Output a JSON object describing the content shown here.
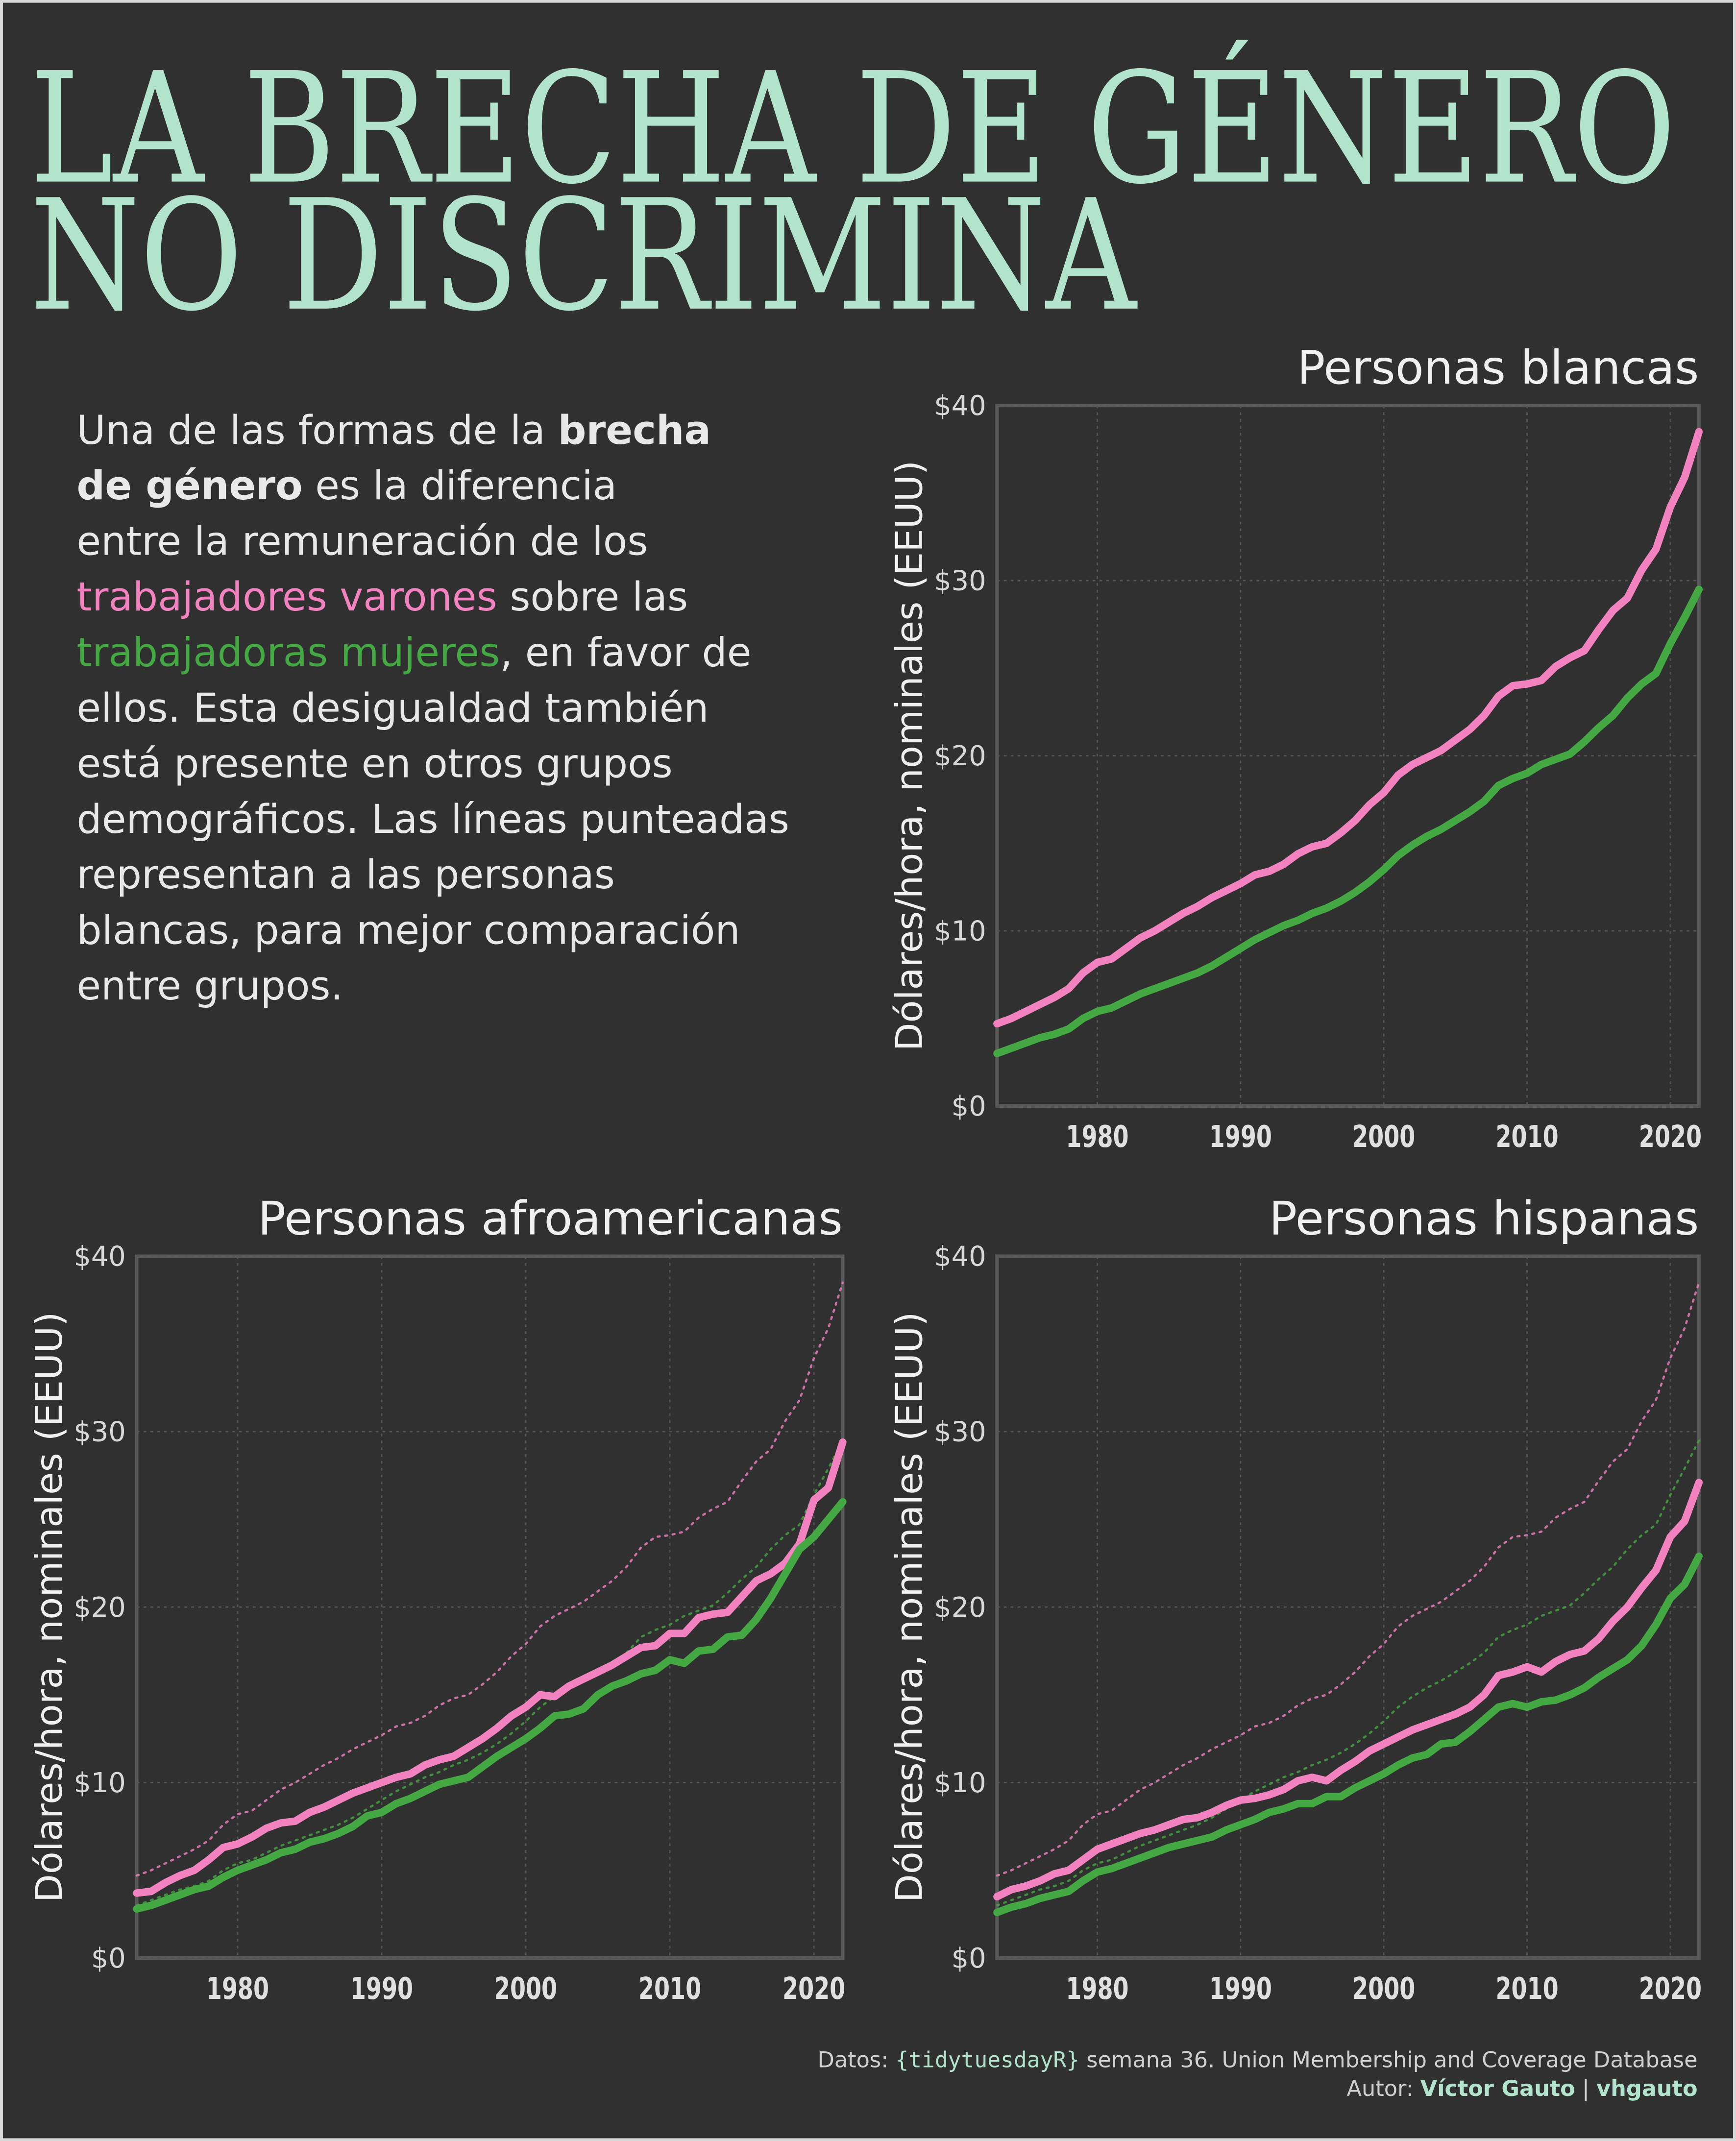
{
  "title": [
    "LA BRECHA DE GÉNERO",
    "NO DISCRIMINA"
  ],
  "description": [
    [
      {
        "text": "Una de las formas de la ",
        "style": "normal"
      },
      {
        "text": "brecha",
        "style": "bold"
      }
    ],
    [
      {
        "text": "de género",
        "style": "bold"
      },
      {
        "text": " es la diferencia",
        "style": "normal"
      }
    ],
    [
      {
        "text": "entre la remuneración de los",
        "style": "normal"
      }
    ],
    [
      {
        "text": "trabajadores varones",
        "style": "men"
      },
      {
        "text": " sobre las",
        "style": "normal"
      }
    ],
    [
      {
        "text": "trabajadoras mujeres",
        "style": "women"
      },
      {
        "text": ", en favor de",
        "style": "normal"
      }
    ],
    [
      {
        "text": "ellos. Esta desigualdad también",
        "style": "normal"
      }
    ],
    [
      {
        "text": "está presente en otros grupos",
        "style": "normal"
      }
    ],
    [
      {
        "text": "demográficos. Las líneas punteadas",
        "style": "normal"
      }
    ],
    [
      {
        "text": "representan a las personas",
        "style": "normal"
      }
    ],
    [
      {
        "text": "blancas, para mejor comparación",
        "style": "normal"
      }
    ],
    [
      {
        "text": "entre grupos.",
        "style": "normal"
      }
    ]
  ],
  "caption": [
    [
      {
        "text": "Datos: ",
        "style": "normal"
      },
      {
        "text": "{tidytuesdayR}",
        "style": "mono"
      },
      {
        "text": " semana 36. Union Membership and Coverage Database",
        "style": "normal"
      }
    ],
    [
      {
        "text": "Autor: ",
        "style": "normal"
      },
      {
        "text": "Víctor Gauto",
        "style": "bold"
      },
      {
        "text": " | ",
        "style": "normal"
      },
      {
        "text": "vhgauto",
        "style": "bold"
      }
    ]
  ],
  "chart_data": [
    {
      "type": "line",
      "title": "Personas blancas",
      "y_label": "Dólares/hora, nominales (EEUU)",
      "x": [
        1973,
        1974,
        1975,
        1976,
        1977,
        1978,
        1979,
        1980,
        1981,
        1982,
        1983,
        1984,
        1985,
        1986,
        1987,
        1988,
        1989,
        1990,
        1991,
        1992,
        1993,
        1994,
        1995,
        1996,
        1997,
        1998,
        1999,
        2000,
        2001,
        2002,
        2003,
        2004,
        2005,
        2006,
        2007,
        2008,
        2009,
        2010,
        2011,
        2012,
        2013,
        2014,
        2015,
        2016,
        2017,
        2018,
        2019,
        2020,
        2021,
        2022
      ],
      "series": [
        {
          "name": "trabajadores varones",
          "color": "#f282c0",
          "values": [
            4.7,
            5.0,
            5.4,
            5.8,
            6.2,
            6.7,
            7.6,
            8.2,
            8.4,
            9.0,
            9.6,
            10.0,
            10.5,
            11.0,
            11.4,
            11.9,
            12.3,
            12.7,
            13.2,
            13.4,
            13.8,
            14.4,
            14.8,
            15.0,
            15.6,
            16.3,
            17.2,
            17.9,
            18.9,
            19.5,
            19.9,
            20.3,
            20.9,
            21.5,
            22.3,
            23.4,
            24.0,
            24.1,
            24.3,
            25.1,
            25.6,
            26.0,
            27.2,
            28.3,
            29.0,
            30.6,
            31.8,
            34.2,
            35.9,
            38.5
          ]
        },
        {
          "name": "trabajadoras mujeres",
          "color": "#44a843",
          "values": [
            3.0,
            3.3,
            3.6,
            3.9,
            4.1,
            4.4,
            5.0,
            5.4,
            5.6,
            6.0,
            6.4,
            6.7,
            7.0,
            7.3,
            7.6,
            8.0,
            8.5,
            9.0,
            9.5,
            9.9,
            10.3,
            10.6,
            11.0,
            11.3,
            11.7,
            12.2,
            12.8,
            13.5,
            14.3,
            14.9,
            15.4,
            15.8,
            16.3,
            16.8,
            17.4,
            18.3,
            18.7,
            19.0,
            19.5,
            19.8,
            20.1,
            20.8,
            21.6,
            22.3,
            23.3,
            24.1,
            24.7,
            26.4,
            27.9,
            29.5
          ]
        }
      ],
      "xlim": [
        1973,
        2022
      ],
      "xticks": [
        1980,
        1990,
        2000,
        2010,
        2020
      ],
      "ylim": [
        0,
        40
      ],
      "yticks": [
        {
          "value": 0,
          "label": "$0"
        },
        {
          "value": 10,
          "label": "$10"
        },
        {
          "value": 20,
          "label": "$20"
        },
        {
          "value": 30,
          "label": "$30"
        },
        {
          "value": 40,
          "label": "$40"
        }
      ],
      "grid": true,
      "reference_dotted": false
    },
    {
      "type": "line",
      "title": "Personas afroamericanas",
      "y_label": "Dólares/hora, nominales (EEUU)",
      "x": [
        1973,
        1974,
        1975,
        1976,
        1977,
        1978,
        1979,
        1980,
        1981,
        1982,
        1983,
        1984,
        1985,
        1986,
        1987,
        1988,
        1989,
        1990,
        1991,
        1992,
        1993,
        1994,
        1995,
        1996,
        1997,
        1998,
        1999,
        2000,
        2001,
        2002,
        2003,
        2004,
        2005,
        2006,
        2007,
        2008,
        2009,
        2010,
        2011,
        2012,
        2013,
        2014,
        2015,
        2016,
        2017,
        2018,
        2019,
        2020,
        2021,
        2022
      ],
      "series": [
        {
          "name": "trabajadores varones",
          "color": "#f282c0",
          "values": [
            3.7,
            3.8,
            4.3,
            4.7,
            5.0,
            5.6,
            6.3,
            6.5,
            6.9,
            7.4,
            7.7,
            7.8,
            8.3,
            8.6,
            9.0,
            9.4,
            9.7,
            10.0,
            10.3,
            10.5,
            11.0,
            11.3,
            11.5,
            12.0,
            12.5,
            13.1,
            13.8,
            14.3,
            15.0,
            14.9,
            15.5,
            15.9,
            16.3,
            16.7,
            17.2,
            17.7,
            17.8,
            18.5,
            18.5,
            19.4,
            19.6,
            19.7,
            20.6,
            21.5,
            21.9,
            22.5,
            23.6,
            26.1,
            26.8,
            29.4
          ]
        },
        {
          "name": "trabajadoras mujeres",
          "color": "#44a843",
          "values": [
            2.8,
            3.0,
            3.3,
            3.6,
            3.9,
            4.1,
            4.6,
            5.0,
            5.3,
            5.6,
            6.0,
            6.2,
            6.6,
            6.8,
            7.1,
            7.5,
            8.1,
            8.3,
            8.8,
            9.1,
            9.5,
            9.9,
            10.1,
            10.3,
            10.9,
            11.5,
            12.0,
            12.5,
            13.1,
            13.8,
            13.9,
            14.2,
            15.0,
            15.5,
            15.8,
            16.2,
            16.4,
            17.0,
            16.8,
            17.5,
            17.6,
            18.3,
            18.4,
            19.3,
            20.5,
            21.9,
            23.3,
            24.0,
            25.0,
            26.0
          ]
        }
      ],
      "xlim": [
        1973,
        2022
      ],
      "xticks": [
        1980,
        1990,
        2000,
        2010,
        2020
      ],
      "ylim": [
        0,
        40
      ],
      "yticks": [
        {
          "value": 0,
          "label": "$0"
        },
        {
          "value": 10,
          "label": "$10"
        },
        {
          "value": 20,
          "label": "$20"
        },
        {
          "value": 30,
          "label": "$30"
        },
        {
          "value": 40,
          "label": "$40"
        }
      ],
      "grid": true,
      "reference_dotted": true
    },
    {
      "type": "line",
      "title": "Personas hispanas",
      "y_label": "Dólares/hora, nominales (EEUU)",
      "x": [
        1973,
        1974,
        1975,
        1976,
        1977,
        1978,
        1979,
        1980,
        1981,
        1982,
        1983,
        1984,
        1985,
        1986,
        1987,
        1988,
        1989,
        1990,
        1991,
        1992,
        1993,
        1994,
        1995,
        1996,
        1997,
        1998,
        1999,
        2000,
        2001,
        2002,
        2003,
        2004,
        2005,
        2006,
        2007,
        2008,
        2009,
        2010,
        2011,
        2012,
        2013,
        2014,
        2015,
        2016,
        2017,
        2018,
        2019,
        2020,
        2021,
        2022
      ],
      "series": [
        {
          "name": "trabajadores varones",
          "color": "#f282c0",
          "values": [
            3.5,
            3.9,
            4.1,
            4.4,
            4.8,
            5.0,
            5.6,
            6.2,
            6.5,
            6.8,
            7.1,
            7.3,
            7.6,
            7.9,
            8.0,
            8.3,
            8.7,
            9.0,
            9.1,
            9.3,
            9.6,
            10.1,
            10.3,
            10.1,
            10.7,
            11.2,
            11.8,
            12.2,
            12.6,
            13.0,
            13.3,
            13.6,
            13.9,
            14.3,
            15.0,
            16.1,
            16.3,
            16.6,
            16.3,
            16.9,
            17.3,
            17.5,
            18.2,
            19.2,
            20.0,
            21.1,
            22.1,
            24.0,
            24.9,
            27.1
          ]
        },
        {
          "name": "trabajadoras mujeres",
          "color": "#44a843",
          "values": [
            2.6,
            2.9,
            3.1,
            3.4,
            3.6,
            3.8,
            4.4,
            4.9,
            5.1,
            5.4,
            5.7,
            6.0,
            6.3,
            6.5,
            6.7,
            6.9,
            7.3,
            7.6,
            7.9,
            8.3,
            8.5,
            8.8,
            8.8,
            9.2,
            9.2,
            9.7,
            10.1,
            10.5,
            11.0,
            11.4,
            11.6,
            12.2,
            12.3,
            12.9,
            13.6,
            14.3,
            14.5,
            14.3,
            14.6,
            14.7,
            15.0,
            15.4,
            16.0,
            16.5,
            17.0,
            17.8,
            19.0,
            20.5,
            21.3,
            22.9
          ]
        }
      ],
      "xlim": [
        1973,
        2022
      ],
      "xticks": [
        1980,
        1990,
        2000,
        2010,
        2020
      ],
      "ylim": [
        0,
        40
      ],
      "yticks": [
        {
          "value": 0,
          "label": "$0"
        },
        {
          "value": 10,
          "label": "$10"
        },
        {
          "value": 20,
          "label": "$20"
        },
        {
          "value": 30,
          "label": "$30"
        },
        {
          "value": 40,
          "label": "$40"
        }
      ],
      "grid": true,
      "reference_dotted": true
    }
  ]
}
